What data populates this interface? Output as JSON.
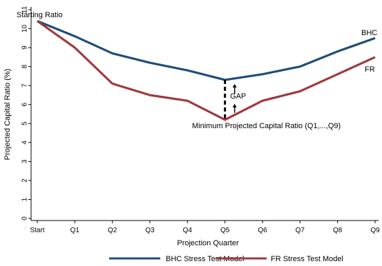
{
  "chart_data": {
    "type": "line",
    "categories": [
      "Start",
      "Q1",
      "Q2",
      "Q3",
      "Q4",
      "Q5",
      "Q6",
      "Q7",
      "Q8",
      "Q9"
    ],
    "series": [
      {
        "name": "BHC Stress Test Model",
        "end_label": "BHC",
        "color": "#1f4e79",
        "values": [
          10.4,
          9.6,
          8.7,
          8.2,
          7.8,
          7.3,
          7.6,
          8.0,
          8.8,
          9.5
        ]
      },
      {
        "name": "FR Stress Test Model",
        "end_label": "FR",
        "color": "#a0393e",
        "values": [
          10.4,
          9.0,
          7.1,
          6.5,
          6.2,
          5.2,
          6.2,
          6.7,
          7.6,
          8.5
        ]
      }
    ],
    "xlabel": "Projection Quarter",
    "ylabel": "Projected Capital Ratio (%)",
    "ylim": [
      0,
      11
    ],
    "yticks": [
      "0",
      "1",
      "2",
      "3",
      "4",
      "5",
      "6",
      "7",
      "8",
      "9",
      "10",
      "11"
    ],
    "annotations": {
      "start": "Starting Ratio",
      "gap": "GAP",
      "minimum": "Minimum Projected Capital Ratio (Q1,...,Q9)"
    },
    "gap_at": "Q5",
    "grid": false,
    "legend_position": "bottom"
  }
}
